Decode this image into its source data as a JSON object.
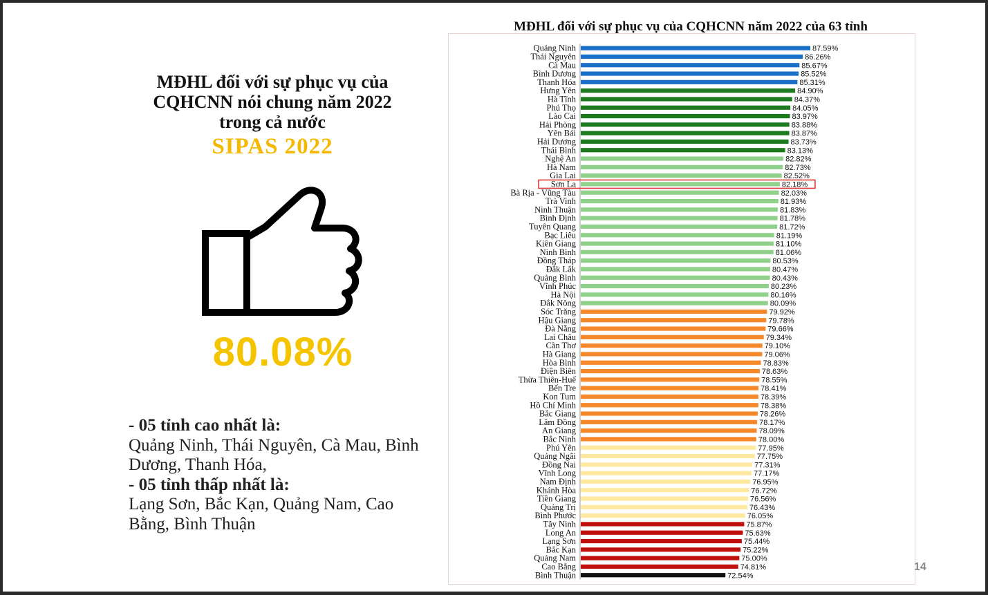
{
  "left": {
    "title_lines": [
      "MĐHL đối với sự phục vụ của",
      "CQHCNN nói chung năm 2022",
      "trong cả nước"
    ],
    "subtitle": "SIPAS 2022",
    "overall_value": "80.08%",
    "top_label": "- 05 tỉnh cao nhất là:",
    "top_provinces": "Quảng Ninh, Thái Nguyên, Cà Mau, Bình Dương, Thanh Hóa,",
    "bottom_label": "- 05 tỉnh thấp nhất là:",
    "bottom_provinces": "Lạng Sơn, Bắc Kạn, Quảng Nam, Cao Bằng, Bình Thuận",
    "thumb_icon": "thumbs-up-icon"
  },
  "page_number": "14",
  "chart_data": {
    "type": "bar",
    "orientation": "horizontal",
    "title": "MĐHL đối với sự phục vụ của CQHCNN năm 2022 của 63 tỉnh",
    "unit": "%",
    "highlighted_category": "Sơn La",
    "highlight_color": "#e23a3a",
    "categories": [
      "Quảng Ninh",
      "Thái Nguyên",
      "Cà Mau",
      "Bình Dương",
      "Thanh Hóa",
      "Hưng Yên",
      "Hà Tĩnh",
      "Phú Thọ",
      "Lào Cai",
      "Hải Phòng",
      "Yên Bái",
      "Hải Dương",
      "Thái Bình",
      "Nghệ An",
      "Hà Nam",
      "Gia Lai",
      "Sơn La",
      "Bà Rịa - Vũng Tàu",
      "Trà Vinh",
      "Ninh Thuận",
      "Bình Định",
      "Tuyên Quang",
      "Bạc Liêu",
      "Kiên Giang",
      "Ninh Bình",
      "Đồng Tháp",
      "Đắk Lắk",
      "Quảng Bình",
      "Vĩnh Phúc",
      "Hà Nội",
      "Đắk Nông",
      "Sóc Trăng",
      "Hậu Giang",
      "Đà Nẵng",
      "Lai Châu",
      "Cần Thơ",
      "Hà Giang",
      "Hòa Bình",
      "Điện Biên",
      "Thừa Thiên-Huế",
      "Bến Tre",
      "Kon Tum",
      "Hồ Chí Minh",
      "Bắc Giang",
      "Lâm Đồng",
      "An Giang",
      "Bắc Ninh",
      "Phú Yên",
      "Quảng Ngãi",
      "Đồng Nai",
      "Vĩnh Long",
      "Nam Định",
      "Khánh Hòa",
      "Tiền Giang",
      "Quảng Trị",
      "Bình Phước",
      "Tây Ninh",
      "Long An",
      "Lạng Sơn",
      "Bắc Kạn",
      "Quảng Nam",
      "Cao Bằng",
      "Bình Thuận"
    ],
    "values": [
      87.59,
      86.26,
      85.67,
      85.52,
      85.31,
      84.9,
      84.37,
      84.05,
      83.97,
      83.88,
      83.87,
      83.73,
      83.13,
      82.82,
      82.73,
      82.52,
      82.18,
      82.03,
      81.93,
      81.83,
      81.78,
      81.72,
      81.19,
      81.1,
      81.06,
      80.53,
      80.47,
      80.43,
      80.23,
      80.16,
      80.09,
      79.92,
      79.78,
      79.66,
      79.34,
      79.1,
      79.06,
      78.83,
      78.63,
      78.55,
      78.41,
      78.39,
      78.38,
      78.26,
      78.17,
      78.09,
      78.0,
      77.95,
      77.75,
      77.31,
      77.17,
      76.95,
      76.72,
      76.56,
      76.43,
      76.05,
      75.87,
      75.63,
      75.44,
      75.22,
      75.0,
      74.81,
      72.54
    ],
    "labels": [
      "87.59%",
      "86.26%",
      "85.67%",
      "85.52%",
      "85.31%",
      "84.90%",
      "84.37%",
      "84.05%",
      "83.97%",
      "83.88%",
      "83.87%",
      "83.73%",
      "83.13%",
      "82.82%",
      "82.73%",
      "82.52%",
      "82.18%",
      "82.03%",
      "81.93%",
      "81.83%",
      "81.78%",
      "81.72%",
      "81.19%",
      "81.10%",
      "81.06%",
      "80.53%",
      "80.47%",
      "80.43%",
      "80.23%",
      "80.16%",
      "80.09%",
      "79.92%",
      "79.78%",
      "79.66%",
      "79.34%",
      "79.10%",
      "79.06%",
      "78.83%",
      "78.63%",
      "78.55%",
      "78.41%",
      "78.39%",
      "78.38%",
      "78.26%",
      "78.17%",
      "78.09%",
      "78.00%",
      "77.95%",
      "77.75%",
      "77.31%",
      "77.17%",
      "76.95%",
      "76.72%",
      "76.56%",
      "76.43%",
      "76.05%",
      "75.87%",
      "75.63%",
      "75.44%",
      "75.22%",
      "75.00%",
      "74.81%",
      "72.54%"
    ],
    "color_groups": [
      {
        "count": 5,
        "color": "#1a6fc9"
      },
      {
        "count": 8,
        "color": "#1e7a1e"
      },
      {
        "count": 18,
        "color": "#8fd18a"
      },
      {
        "count": 16,
        "color": "#f5882a"
      },
      {
        "count": 9,
        "color": "#ffe8a0"
      },
      {
        "count": 6,
        "color": "#c0100e"
      },
      {
        "count": 1,
        "color": "#111111"
      }
    ]
  }
}
